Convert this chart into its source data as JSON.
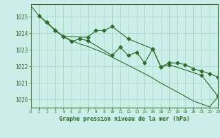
{
  "title": "Graphe pression niveau de la mer (hPa)",
  "bg_color": "#cceee8",
  "grid_color": "#aaddcc",
  "line_color": "#2d6e2d",
  "xlim": [
    0,
    23
  ],
  "ylim": [
    1019.5,
    1025.75
  ],
  "yticks": [
    1020,
    1021,
    1022,
    1023,
    1024,
    1025
  ],
  "xticks": [
    0,
    1,
    2,
    3,
    4,
    5,
    6,
    7,
    8,
    9,
    10,
    11,
    12,
    13,
    14,
    15,
    16,
    17,
    18,
    19,
    20,
    21,
    22,
    23
  ],
  "line_thin": [
    1025.65,
    1025.05,
    1024.6,
    1024.2,
    1023.8,
    1023.55,
    1023.35,
    1023.2,
    1023.0,
    1022.8,
    1022.55,
    1022.3,
    1022.05,
    1021.8,
    1021.55,
    1021.28,
    1020.98,
    1020.72,
    1020.45,
    1020.18,
    1019.9,
    1019.72,
    1019.55,
    1020.15
  ],
  "line_upper_x": [
    1,
    2,
    3,
    4,
    7,
    8,
    9,
    10,
    12,
    15,
    16,
    17,
    18,
    19,
    20,
    21,
    22,
    23
  ],
  "line_upper_y": [
    1025.05,
    1024.65,
    1024.15,
    1023.8,
    1023.75,
    1024.15,
    1024.15,
    1024.4,
    1023.65,
    1023.05,
    1021.95,
    1022.2,
    1022.2,
    1022.1,
    1021.85,
    1021.7,
    1021.55,
    1021.35
  ],
  "line_lower_x": [
    2,
    3,
    4,
    5,
    6,
    7,
    10,
    11,
    12,
    13,
    14,
    15,
    16,
    17,
    21,
    23
  ],
  "line_lower_y": [
    1024.65,
    1024.15,
    1023.8,
    1023.5,
    1023.65,
    1023.55,
    1022.65,
    1023.15,
    1022.65,
    1022.85,
    1022.2,
    1023.05,
    1021.95,
    1022.1,
    1021.45,
    1020.2
  ]
}
